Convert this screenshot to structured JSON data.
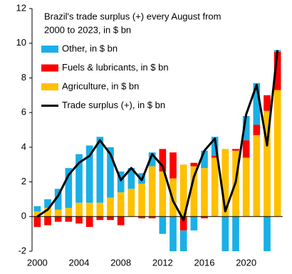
{
  "chart_data": {
    "type": "bar",
    "title": [
      "Brazil's trade surplus (+)  every August from",
      "2000  to 2023,  in $ bn"
    ],
    "categories": [
      "2000",
      null,
      null,
      null,
      "2004",
      null,
      null,
      null,
      "2008",
      null,
      null,
      null,
      "2012",
      null,
      null,
      null,
      "2016",
      null,
      null,
      null,
      "2020",
      null,
      null,
      null
    ],
    "series": [
      {
        "name": "Other, in $ bn",
        "type": "bar",
        "color": "#1aafe6",
        "values": [
          0.3,
          0.5,
          1.2,
          2.3,
          2.8,
          3.3,
          3.8,
          2.9,
          1.2,
          1.2,
          0.6,
          0.8,
          -1.0,
          -2.0,
          -2.0,
          -0.8,
          1.0,
          1.1,
          -2.0,
          -2.0,
          1.4,
          2.4,
          -2.0,
          0.1
        ]
      },
      {
        "name": "Fuels & lubricants, in $ bn",
        "type": "bar",
        "color": "#ff0000",
        "values": [
          -0.6,
          -0.5,
          -0.3,
          -0.3,
          -0.4,
          -0.6,
          -0.2,
          -0.2,
          -0.5,
          0.0,
          -0.1,
          -0.1,
          1.3,
          1.5,
          -0.8,
          0.2,
          -0.1,
          0.1,
          0.0,
          0.1,
          1.0,
          0.6,
          0.9,
          2.2
        ]
      },
      {
        "name": "Agriculture, in $ bn",
        "type": "bar",
        "color": "#ffc000",
        "values": [
          0.3,
          0.5,
          0.4,
          0.5,
          0.8,
          0.8,
          0.8,
          1.1,
          1.4,
          1.6,
          1.9,
          2.9,
          2.6,
          2.2,
          3.0,
          2.9,
          2.8,
          3.4,
          3.9,
          3.8,
          3.4,
          4.7,
          6.1,
          7.3
        ]
      },
      {
        "name": "Trade surplus (+), in $ bn",
        "type": "line",
        "color": "#000000",
        "values": [
          0.0,
          0.4,
          1.2,
          2.4,
          3.1,
          3.5,
          4.4,
          3.6,
          2.1,
          2.8,
          2.1,
          3.6,
          2.9,
          0.9,
          -0.2,
          2.3,
          3.8,
          4.5,
          0.3,
          2.0,
          5.9,
          7.6,
          4.1,
          9.6
        ]
      }
    ],
    "ylim": [
      -2,
      12
    ],
    "yticks": [
      -2,
      0,
      2,
      4,
      6,
      8,
      10,
      12
    ]
  }
}
